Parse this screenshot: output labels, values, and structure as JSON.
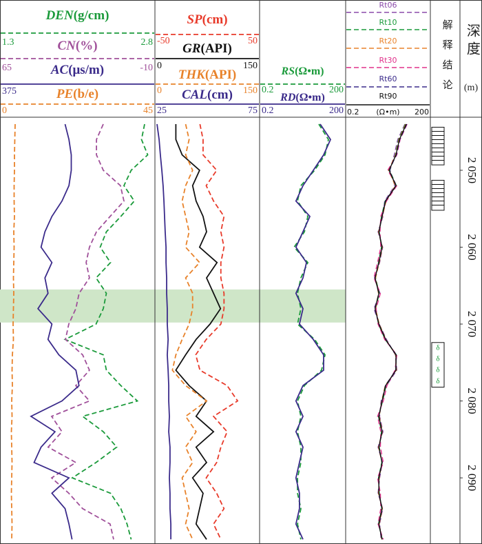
{
  "chart_data": {
    "type": "well_log",
    "depth": [
      2044,
      2046,
      2048,
      2050,
      2052,
      2054,
      2056,
      2058,
      2060,
      2062,
      2064,
      2066,
      2068,
      2070,
      2072,
      2074,
      2076,
      2078,
      2080,
      2082,
      2084,
      2086,
      2088,
      2090,
      2092,
      2094,
      2096,
      2098
    ],
    "ylim": [
      2043.1,
      2098.6
    ],
    "yticks": [
      {
        "value": 2050,
        "label": "2 050"
      },
      {
        "value": 2060,
        "label": "2 060"
      },
      {
        "value": 2070,
        "label": "2 070"
      },
      {
        "value": 2080,
        "label": "2 080"
      },
      {
        "value": 2090,
        "label": "2 090"
      }
    ],
    "depth_title": "深度",
    "depth_unit": "(m)",
    "interpretation_title": "解释结论",
    "highlight": {
      "top": 2065.5,
      "bottom": 2069.8,
      "color": "#cfe6c8"
    },
    "intervals": [
      {
        "top": 2044.4,
        "bottom": 2049.3,
        "pattern": "lines"
      },
      {
        "top": 2051.3,
        "bottom": 2055.2,
        "pattern": "lines"
      },
      {
        "top": 2072.4,
        "bottom": 2078.2,
        "pattern": "symbol",
        "symbol": "δ",
        "color": "#1a9a3a"
      }
    ],
    "tracks": [
      {
        "log": false,
        "series": [
          {
            "name": "DEN",
            "unit": "(g/cm)",
            "color": "#1a9a3a",
            "dash": true,
            "xlim": [
              1.3,
              2.8
            ],
            "values": [
              2.7,
              2.67,
              2.73,
              2.57,
              2.5,
              2.6,
              2.47,
              2.33,
              2.27,
              2.37,
              2.23,
              2.33,
              2.3,
              2.23,
              1.93,
              2.3,
              2.33,
              2.47,
              2.63,
              2.1,
              2.3,
              2.43,
              2.23,
              2.0,
              2.37,
              2.47,
              2.53,
              2.57
            ]
          },
          {
            "name": "CN",
            "unit": "(%)",
            "color": "#a0509a",
            "dash": true,
            "xlim": [
              65,
              -10
            ],
            "values": [
              15,
              18.3,
              18.3,
              15,
              6.7,
              5,
              11.7,
              18.3,
              21.7,
              23.3,
              21.7,
              26.7,
              28.3,
              31.7,
              33.3,
              25,
              21.7,
              28.3,
              21.7,
              40,
              35,
              41.7,
              28.3,
              40,
              31.7,
              25,
              11.7,
              10
            ]
          },
          {
            "name": "AC",
            "unit": "(μs/m)",
            "color": "#3a2a8a",
            "dash": false,
            "xlim": [
              375,
              175
            ],
            "scale_labels": "left",
            "values": [
              291,
              286,
              283,
              283,
              286,
              295,
              308,
              317,
              322,
              308,
              317,
              313,
              326,
              308,
              313,
              299,
              277,
              273,
              295,
              335,
              304,
              322,
              331,
              286,
              308,
              291,
              286,
              282
            ]
          },
          {
            "name": "PE",
            "unit": "(b/e)",
            "color": "#e8822a",
            "dash": true,
            "xlim": [
              0,
              45
            ],
            "values": [
              4.4,
              4.3,
              4.2,
              4.2,
              4.1,
              4.1,
              4.2,
              4.0,
              4.1,
              4.0,
              3.9,
              4.0,
              3.9,
              3.8,
              3.9,
              3.6,
              3.5,
              3.6,
              3.4,
              3.5,
              3.3,
              3.4,
              3.5,
              3.4,
              3.3,
              3.4,
              3.5,
              3.4
            ]
          }
        ]
      },
      {
        "log": false,
        "series": [
          {
            "name": "SP",
            "unit": "(cm)",
            "color": "#e83a2a",
            "dash": true,
            "xlim": [
              -50,
              50
            ],
            "values": [
              -7,
              -4,
              -4,
              9,
              -1,
              6,
              16,
              13,
              16,
              13,
              13,
              16,
              16,
              13,
              -1,
              -11,
              -7,
              19,
              29,
              6,
              19,
              13,
              9,
              -1,
              9,
              16,
              6,
              13
            ]
          },
          {
            "name": "GR",
            "unit": "(API)",
            "color": "#111111",
            "dash": false,
            "xlim": [
              0,
              150
            ],
            "values": [
              30,
              30,
              39,
              64,
              54,
              59,
              69,
              74,
              64,
              89,
              74,
              84,
              94,
              79,
              59,
              44,
              30,
              49,
              74,
              59,
              84,
              59,
              74,
              54,
              69,
              64,
              59,
              74
            ]
          },
          {
            "name": "THK",
            "unit": "(API)",
            "color": "#e8822a",
            "dash": true,
            "xlim": [
              0,
              150
            ],
            "values": [
              44,
              49,
              44,
              54,
              44,
              39,
              44,
              49,
              44,
              64,
              44,
              54,
              54,
              49,
              39,
              30,
              25,
              44,
              74,
              44,
              59,
              44,
              54,
              39,
              44,
              49,
              44,
              54
            ]
          },
          {
            "name": "CAL",
            "unit": "(cm)",
            "color": "#3a2a8a",
            "dash": false,
            "xlim": [
              25,
              75
            ],
            "values": [
              26,
              27,
              27.6,
              28.3,
              28.9,
              29.3,
              29.6,
              29.9,
              30.3,
              30.3,
              30.6,
              30.6,
              30.9,
              30.9,
              31.3,
              30.9,
              31.3,
              31.6,
              31.6,
              31.9,
              31.6,
              32.2,
              32.2,
              31.9,
              32.2,
              32.2,
              32.6,
              32.6
            ]
          }
        ]
      },
      {
        "log": true,
        "series": [
          {
            "name": "RS",
            "unit": "(Ω•m)",
            "color": "#1a9a3a",
            "dash": true,
            "xlim": [
              0.2,
              200
            ],
            "values": [
              23.2,
              50.2,
              38.1,
              16.6,
              5.5,
              4.2,
              9.6,
              7.3,
              3.2,
              9.6,
              5.5,
              4.2,
              5.5,
              4.2,
              16.6,
              38.1,
              28.9,
              7.3,
              4.2,
              5.5,
              4.2,
              5.5,
              5.5,
              4.2,
              4.2,
              5.5,
              4.2,
              5.5
            ]
          },
          {
            "name": "RD",
            "unit": "(Ω•m)",
            "color": "#3a2a8a",
            "dash": false,
            "xlim": [
              0.2,
              200
            ],
            "values": [
              25.9,
              59.3,
              34.1,
              14.9,
              6.5,
              3.7,
              11.3,
              6.5,
              3.7,
              8.6,
              6.5,
              3.7,
              6.5,
              4.9,
              14.9,
              34.1,
              34.1,
              6.5,
              3.7,
              6.5,
              3.7,
              6.5,
              4.9,
              3.7,
              4.9,
              4.9,
              3.7,
              6.5
            ]
          }
        ]
      },
      {
        "log": true,
        "xlim": [
          0.2,
          200
        ],
        "unit": "(Ω•m)",
        "series": [
          {
            "name": "Rt06",
            "color": "#8a4aaa",
            "dash": true,
            "values": [
              25,
              14,
              10.5,
              7.5,
              11,
              4.8,
              4.2,
              2.8,
              4.1,
              3.2,
              2.1,
              3.3,
              2.0,
              3.1,
              5.6,
              11.5,
              13,
              5.6,
              3.6,
              3.2,
              4.2,
              2.8,
              4.0,
              3.2,
              2.8,
              4.1,
              3.2,
              3.6
            ]
          },
          {
            "name": "Rt10",
            "color": "#1a9a3a",
            "dash": true,
            "values": [
              26,
              15,
              11.5,
              7.2,
              12.5,
              5.0,
              3.7,
              3.1,
              3.7,
              2.9,
              2.3,
              3.1,
              2.3,
              2.9,
              5.0,
              12.5,
              11.8,
              5.4,
              4.1,
              2.9,
              3.7,
              3.1,
              3.8,
              2.9,
              3.1,
              3.8,
              2.9,
              4.0
            ]
          },
          {
            "name": "Rt20",
            "color": "#e8822a",
            "dash": true,
            "values": [
              27,
              15.5,
              11.8,
              6.6,
              11.5,
              5.4,
              4.0,
              2.9,
              4.0,
              3.1,
              2.3,
              2.9,
              2.3,
              3.1,
              5.3,
              11.8,
              12.5,
              5.0,
              3.8,
              3.1,
              4.0,
              2.9,
              3.9,
              3.1,
              2.9,
              4.0,
              3.1,
              3.8
            ]
          },
          {
            "name": "Rt30",
            "color": "#e0308a",
            "dash": true,
            "values": [
              30,
              17,
              13,
              6.2,
              13,
              5.6,
              3.5,
              3.3,
              3.5,
              2.7,
              2.0,
              3.4,
              2.4,
              2.8,
              4.8,
              13,
              11.2,
              5.8,
              4.3,
              2.7,
              3.5,
              3.4,
              4.3,
              2.7,
              3.4,
              3.5,
              2.8,
              4.3
            ]
          },
          {
            "name": "Rt60",
            "color": "#3a2a8a",
            "dash": true,
            "values": [
              29,
              16.5,
              12.5,
              7.0,
              12.3,
              5.1,
              3.9,
              3.0,
              3.9,
              3.0,
              2.2,
              3.0,
              2.2,
              3.0,
              5.2,
              12.3,
              12.0,
              5.1,
              3.9,
              3.0,
              3.9,
              3.0,
              3.9,
              3.0,
              3.0,
              3.9,
              3.0,
              3.9
            ]
          },
          {
            "name": "Rt90",
            "color": "#111111",
            "dash": false,
            "values": [
              28.0,
              16.0,
              12.1,
              6.9,
              12.1,
              5.2,
              3.9,
              3.0,
              3.9,
              3.0,
              2.2,
              3.0,
              2.2,
              3.0,
              5.2,
              12.1,
              12.1,
              5.2,
              3.9,
              3.0,
              3.9,
              3.0,
              3.9,
              3.0,
              3.0,
              3.9,
              3.0,
              3.9
            ]
          }
        ]
      }
    ]
  }
}
